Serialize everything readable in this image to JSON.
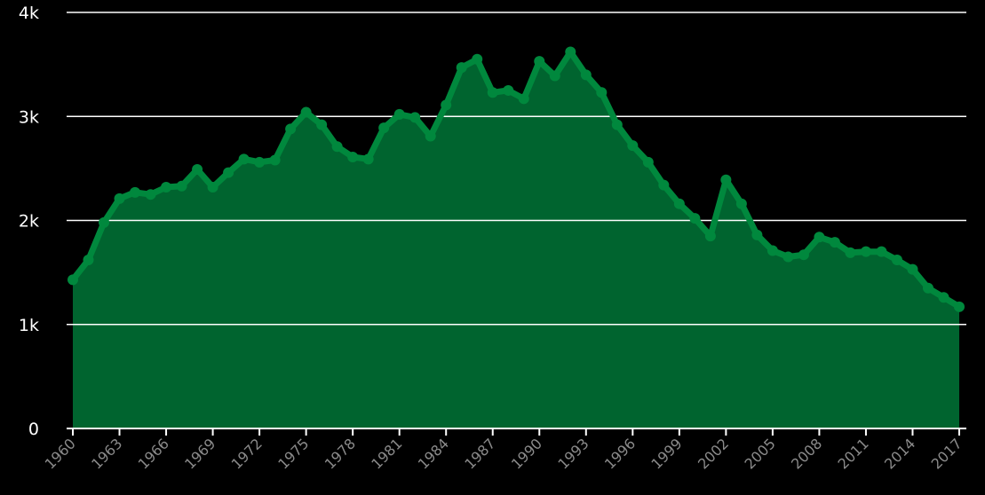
{
  "chart_data": {
    "type": "area",
    "title": "",
    "xlabel": "",
    "ylabel": "",
    "ylim": [
      0,
      4000
    ],
    "y_ticks": [
      {
        "value": 0,
        "label": "0"
      },
      {
        "value": 1000,
        "label": "1k"
      },
      {
        "value": 2000,
        "label": "2k"
      },
      {
        "value": 3000,
        "label": "3k"
      },
      {
        "value": 4000,
        "label": "4k"
      }
    ],
    "x_tick_labels": [
      "1960",
      "1963",
      "1966",
      "1969",
      "1972",
      "1975",
      "1978",
      "1981",
      "1984",
      "1987",
      "1990",
      "1993",
      "1996",
      "1999",
      "2002",
      "2005",
      "2008",
      "2011",
      "2014",
      "2017"
    ],
    "grid": true,
    "colors": {
      "background": "#000000",
      "line": "#00883d",
      "fill": "#00642f",
      "grid": "#ffffff",
      "axis": "#ffffff"
    },
    "x": [
      1960,
      1961,
      1962,
      1963,
      1964,
      1965,
      1966,
      1967,
      1968,
      1969,
      1970,
      1971,
      1972,
      1973,
      1974,
      1975,
      1976,
      1977,
      1978,
      1979,
      1980,
      1981,
      1982,
      1983,
      1984,
      1985,
      1986,
      1987,
      1988,
      1989,
      1990,
      1991,
      1992,
      1993,
      1994,
      1995,
      1996,
      1997,
      1998,
      1999,
      2000,
      2001,
      2002,
      2003,
      2004,
      2005,
      2006,
      2007,
      2008,
      2009,
      2010,
      2011,
      2012,
      2013,
      2014,
      2015,
      2016,
      2017
    ],
    "series": [
      {
        "values": [
          1430,
          1620,
          1980,
          2210,
          2270,
          2250,
          2320,
          2330,
          2490,
          2320,
          2460,
          2590,
          2560,
          2580,
          2880,
          3040,
          2920,
          2710,
          2610,
          2590,
          2890,
          3020,
          2990,
          2810,
          3110,
          3470,
          3550,
          3230,
          3250,
          3170,
          3530,
          3390,
          3620,
          3400,
          3230,
          2920,
          2720,
          2560,
          2340,
          2160,
          2020,
          1850,
          2390,
          2160,
          1860,
          1710,
          1650,
          1670,
          1840,
          1790,
          1690,
          1700,
          1700,
          1620,
          1530,
          1350,
          1260,
          1170
        ]
      }
    ]
  }
}
